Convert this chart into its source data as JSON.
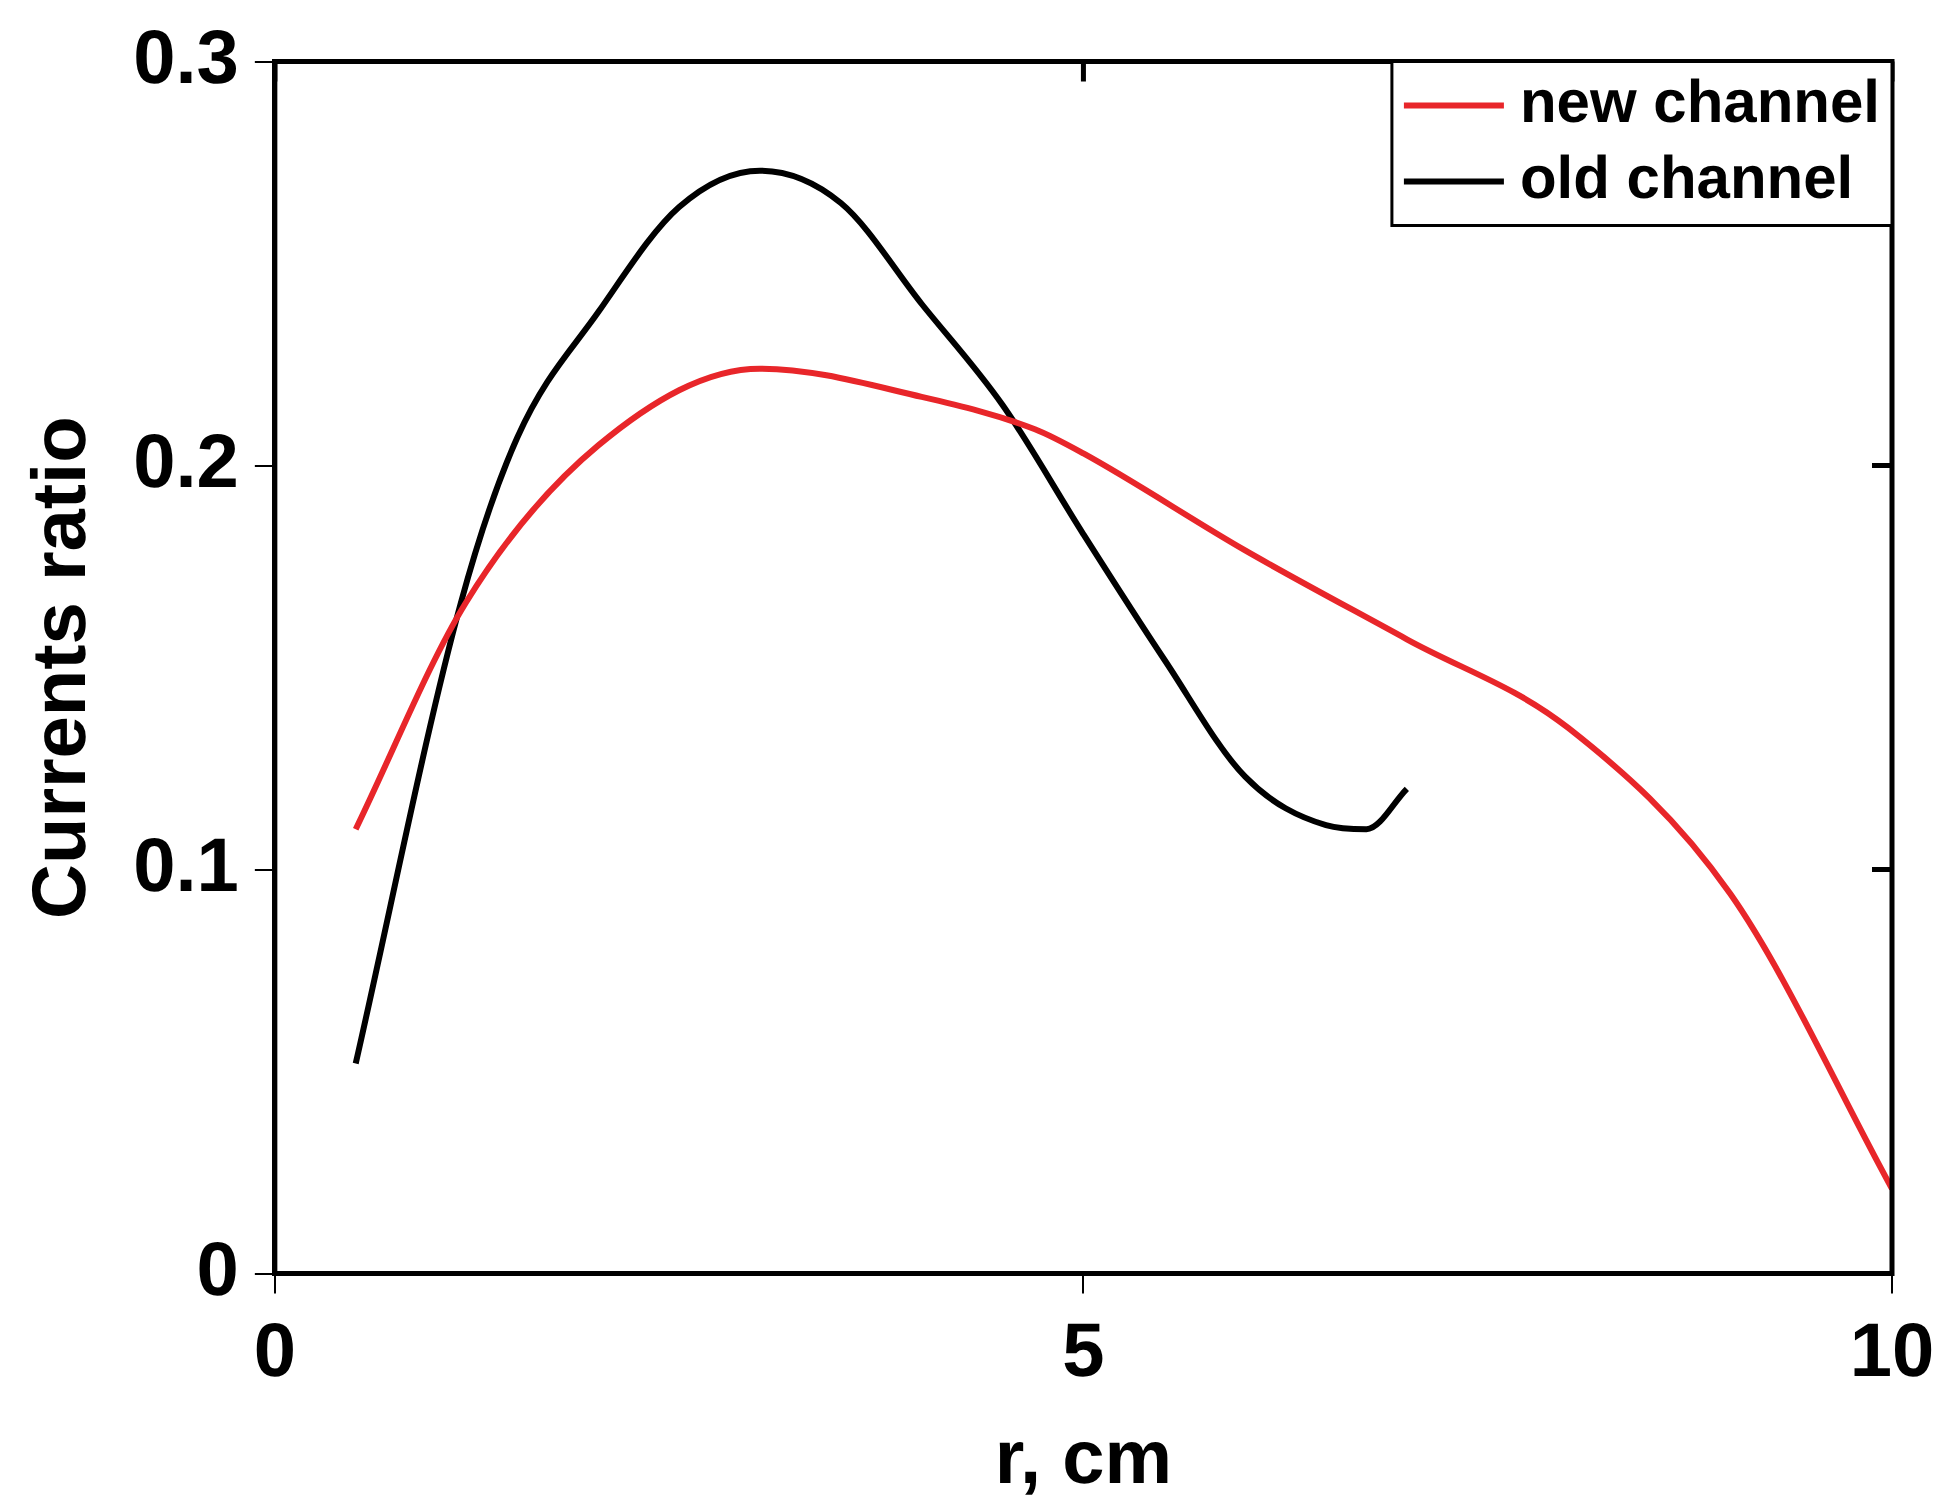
{
  "chart_data": {
    "type": "line",
    "xlabel": "r, cm",
    "ylabel": "Currents ratio",
    "xlim": [
      0,
      10
    ],
    "xticks": [
      0,
      5,
      10
    ],
    "ylim": [
      0,
      0.3
    ],
    "yticks": [
      0,
      0.1,
      0.2,
      0.3
    ],
    "grid": false,
    "legend": "top right",
    "marker": "none",
    "line_style": "solid",
    "series": [
      {
        "name": "new channel",
        "color": "#e8262a",
        "x": [
          0.5,
          1.18,
          2,
          3,
          4,
          4.7,
          5,
          6,
          7,
          8,
          9,
          10
        ],
        "values": [
          0.11,
          0.166,
          0.205,
          0.224,
          0.217,
          0.209,
          0.203,
          0.179,
          0.157,
          0.135,
          0.094,
          0.021
        ]
      },
      {
        "name": "old channel",
        "color": "#000000",
        "x": [
          0.5,
          1.15,
          1.5,
          2,
          2.5,
          3,
          3.5,
          4,
          4.5,
          5,
          5.5,
          6,
          6.5,
          6.75,
          7
        ],
        "values": [
          0.052,
          0.166,
          0.207,
          0.238,
          0.264,
          0.273,
          0.265,
          0.24,
          0.215,
          0.183,
          0.152,
          0.123,
          0.111,
          0.11,
          0.12
        ]
      }
    ]
  }
}
